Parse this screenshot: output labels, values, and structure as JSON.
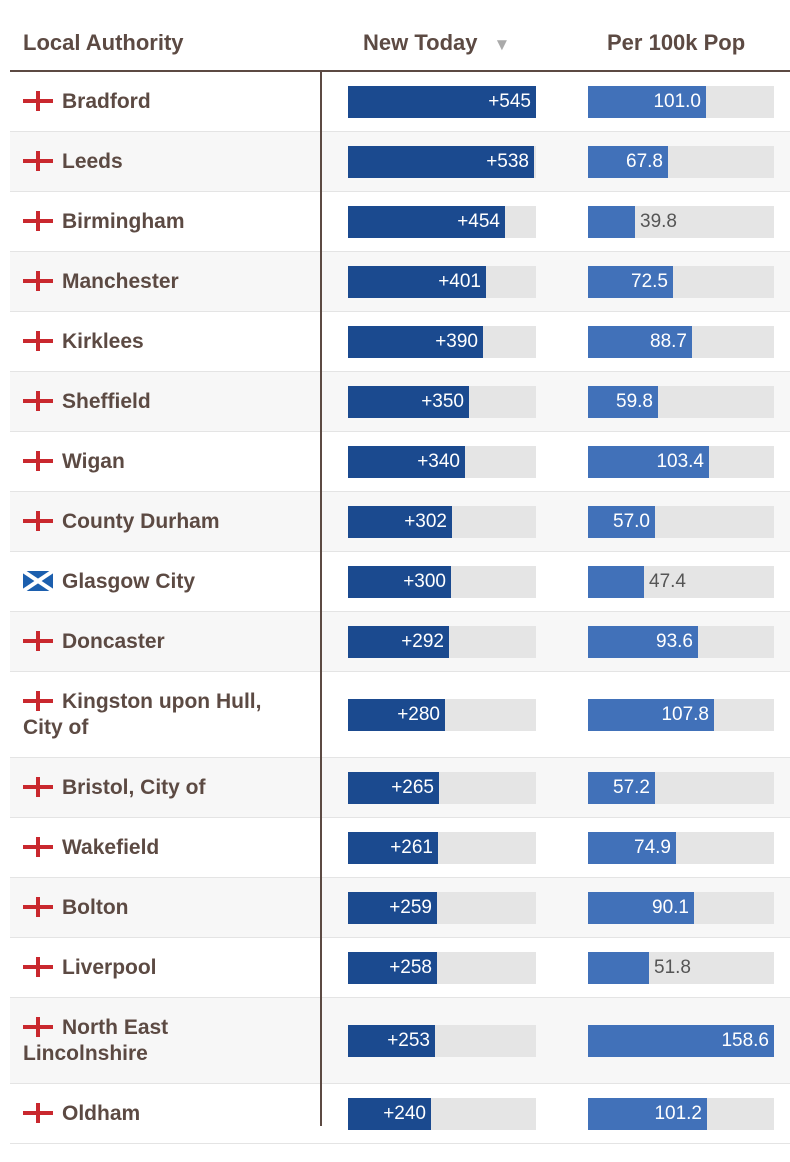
{
  "header": {
    "col_authority": "Local Authority",
    "col_new_today": "New Today",
    "sort_indicator": "▼",
    "col_per_100k": "Per 100k Pop"
  },
  "colors": {
    "new_bar": "#1b4a8f",
    "per_bar": "#4171b9",
    "track": "#e5e5e5",
    "england_cross": "#c9282e",
    "scotland_blue": "#1c5fae"
  },
  "max_new_today": 545,
  "max_per_100k": 158.6,
  "rows": [
    {
      "name": "Bradford",
      "flag": "england-flag-icon",
      "new_today": "+545",
      "new_value": 545,
      "per_100k": "101.0",
      "per_value": 101.0
    },
    {
      "name": "Leeds",
      "flag": "england-flag-icon",
      "new_today": "+538",
      "new_value": 538,
      "per_100k": "67.8",
      "per_value": 67.8
    },
    {
      "name": "Birmingham",
      "flag": "england-flag-icon",
      "new_today": "+454",
      "new_value": 454,
      "per_100k": "39.8",
      "per_value": 39.8
    },
    {
      "name": "Manchester",
      "flag": "england-flag-icon",
      "new_today": "+401",
      "new_value": 401,
      "per_100k": "72.5",
      "per_value": 72.5
    },
    {
      "name": "Kirklees",
      "flag": "england-flag-icon",
      "new_today": "+390",
      "new_value": 390,
      "per_100k": "88.7",
      "per_value": 88.7
    },
    {
      "name": "Sheffield",
      "flag": "england-flag-icon",
      "new_today": "+350",
      "new_value": 350,
      "per_100k": "59.8",
      "per_value": 59.8
    },
    {
      "name": "Wigan",
      "flag": "england-flag-icon",
      "new_today": "+340",
      "new_value": 340,
      "per_100k": "103.4",
      "per_value": 103.4
    },
    {
      "name": "County Durham",
      "flag": "england-flag-icon",
      "new_today": "+302",
      "new_value": 302,
      "per_100k": "57.0",
      "per_value": 57.0
    },
    {
      "name": "Glasgow City",
      "flag": "scotland-flag-icon",
      "new_today": "+300",
      "new_value": 300,
      "per_100k": "47.4",
      "per_value": 47.4
    },
    {
      "name": "Doncaster",
      "flag": "england-flag-icon",
      "new_today": "+292",
      "new_value": 292,
      "per_100k": "93.6",
      "per_value": 93.6
    },
    {
      "name": "Kingston upon Hull, City of",
      "flag": "england-flag-icon",
      "new_today": "+280",
      "new_value": 280,
      "per_100k": "107.8",
      "per_value": 107.8
    },
    {
      "name": "Bristol, City of",
      "flag": "england-flag-icon",
      "new_today": "+265",
      "new_value": 265,
      "per_100k": "57.2",
      "per_value": 57.2
    },
    {
      "name": "Wakefield",
      "flag": "england-flag-icon",
      "new_today": "+261",
      "new_value": 261,
      "per_100k": "74.9",
      "per_value": 74.9
    },
    {
      "name": "Bolton",
      "flag": "england-flag-icon",
      "new_today": "+259",
      "new_value": 259,
      "per_100k": "90.1",
      "per_value": 90.1
    },
    {
      "name": "Liverpool",
      "flag": "england-flag-icon",
      "new_today": "+258",
      "new_value": 258,
      "per_100k": "51.8",
      "per_value": 51.8
    },
    {
      "name": "North East Lincolnshire",
      "flag": "england-flag-icon",
      "new_today": "+253",
      "new_value": 253,
      "per_100k": "158.6",
      "per_value": 158.6
    },
    {
      "name": "Oldham",
      "flag": "england-flag-icon",
      "new_today": "+240",
      "new_value": 240,
      "per_100k": "101.2",
      "per_value": 101.2
    }
  ]
}
